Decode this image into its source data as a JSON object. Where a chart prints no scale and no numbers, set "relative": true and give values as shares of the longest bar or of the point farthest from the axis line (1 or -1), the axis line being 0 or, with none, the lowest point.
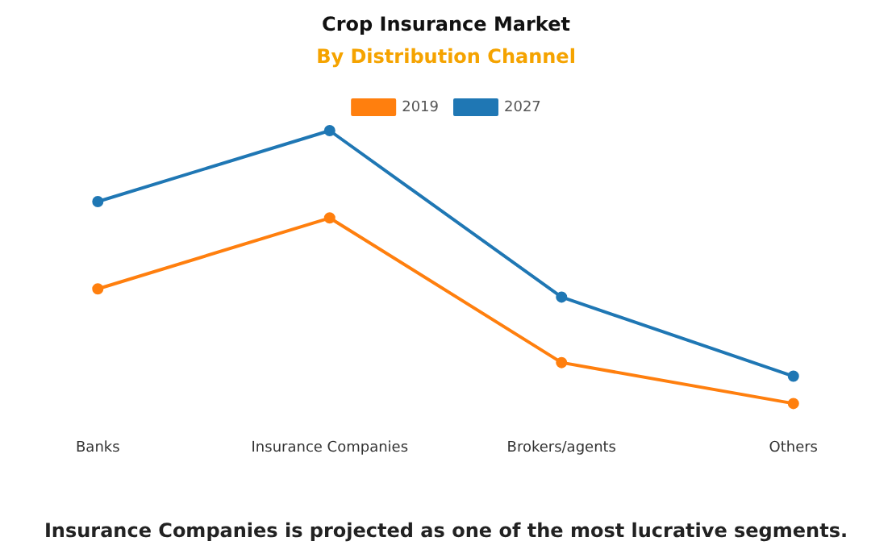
{
  "chart_data": {
    "type": "line",
    "title": "Crop Insurance Market",
    "subtitle": "By Distribution Channel",
    "relative": true,
    "categories": [
      "Banks",
      "Insurance Companies",
      "Brokers/agents",
      "Others"
    ],
    "series": [
      {
        "name": "2019",
        "color": "#ff7f0e",
        "values": [
          0.42,
          0.68,
          0.15,
          0
        ]
      },
      {
        "name": "2027",
        "color": "#1f77b4",
        "values": [
          0.74,
          1,
          0.39,
          0.1
        ]
      }
    ],
    "legend": "top",
    "grid": false,
    "marker": "circle",
    "line_style": "solid",
    "annotations": [
      "Insurance Companies is projected as one of the most lucrative segments."
    ]
  }
}
